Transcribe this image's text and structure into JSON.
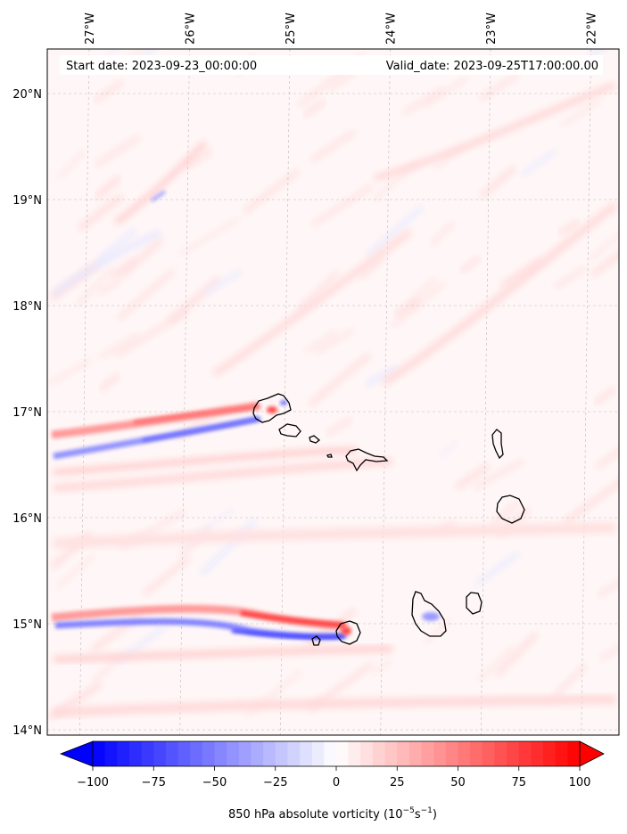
{
  "map": {
    "start_date": "Start date: 2023-09-23_00:00:00",
    "valid_date": "Valid_date: 2023-09-25T17:00:00.00",
    "lon_labels": [
      "27°W",
      "26°W",
      "25°W",
      "24°W",
      "23°W",
      "22°W"
    ],
    "lat_labels": [
      "20°N",
      "19°N",
      "18°N",
      "17°N",
      "16°N",
      "15°N",
      "14°N"
    ],
    "lon_values": [
      -27,
      -26,
      -25,
      -24,
      -23,
      -22
    ],
    "lat_values": [
      20,
      19,
      18,
      17,
      16,
      15,
      14
    ],
    "field": "850 hPa absolute vorticity",
    "islands": [
      "Santo Antão",
      "São Vicente",
      "Santa Luzia",
      "São Nicolau",
      "Sal",
      "Boa Vista",
      "Maio",
      "Santiago",
      "Fogo",
      "Brava"
    ]
  },
  "colorbar": {
    "tick_labels": [
      "−100",
      "−75",
      "−50",
      "−25",
      "0",
      "25",
      "50",
      "75",
      "100"
    ],
    "tick_values": [
      -100,
      -75,
      -50,
      -25,
      0,
      25,
      50,
      75,
      100
    ],
    "range": [
      -100,
      100
    ],
    "label_main": "850 hPa absolute vorticity (10",
    "label_exp1": "−5",
    "label_mid": "s",
    "label_exp2": "−1",
    "label_end": ")",
    "colormap": "bwr",
    "low_color": "#0000ff",
    "mid_color": "#ffffff",
    "high_color": "#ff0000"
  }
}
